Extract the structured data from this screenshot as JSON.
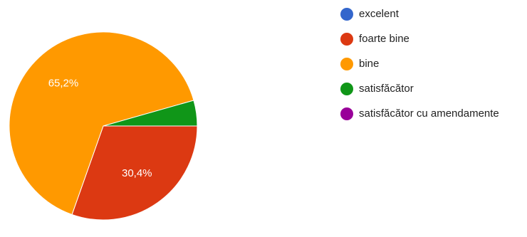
{
  "chart_data": {
    "type": "pie",
    "title": "",
    "legend_position": "right",
    "slices": [
      {
        "name": "excelent",
        "value": 0,
        "label": "",
        "color": "#3366cc"
      },
      {
        "name": "foarte bine",
        "value": 30.4,
        "label": "30,4%",
        "color": "#dc3912"
      },
      {
        "name": "bine",
        "value": 65.2,
        "label": "65,2%",
        "color": "#ff9900"
      },
      {
        "name": "satisfăcător",
        "value": 4.4,
        "label": "",
        "color": "#109618"
      },
      {
        "name": "satisfăcător cu amendamente",
        "value": 0,
        "label": "",
        "color": "#990099"
      }
    ]
  }
}
